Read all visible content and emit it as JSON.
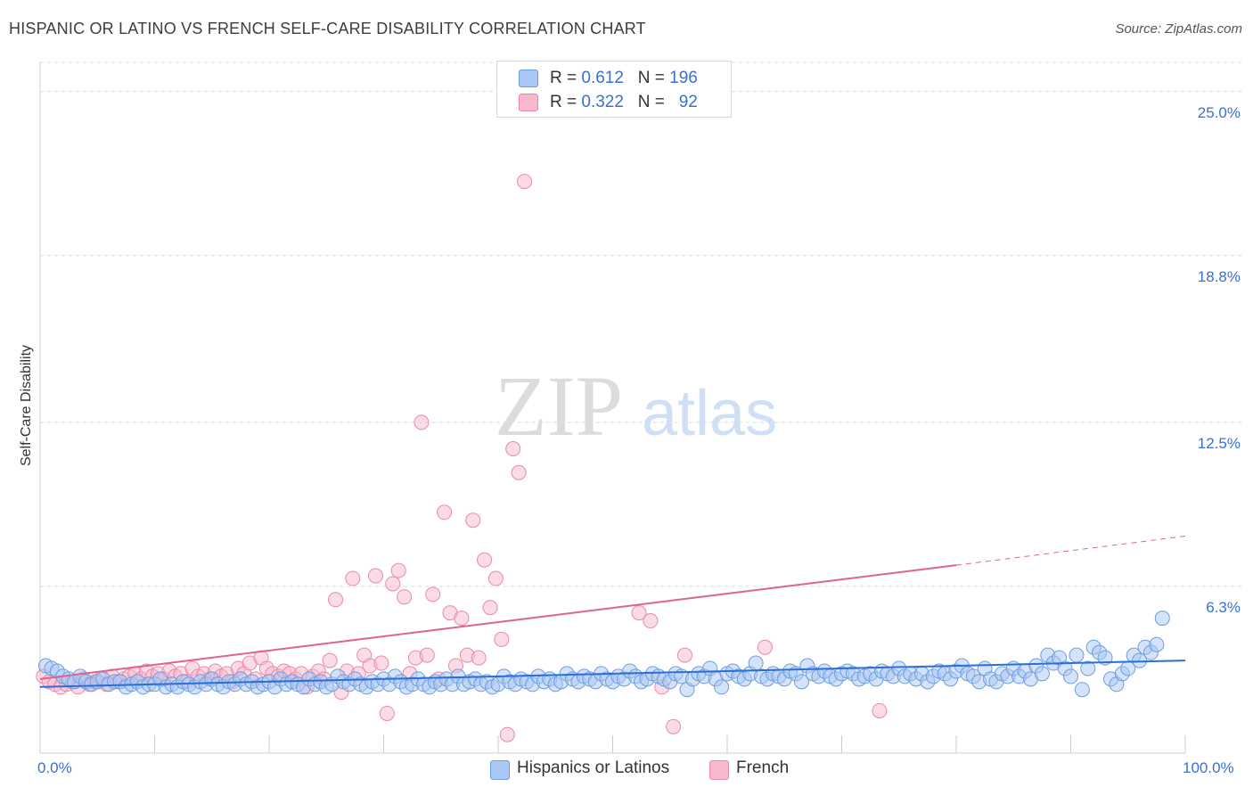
{
  "header": {
    "title": "HISPANIC OR LATINO VS FRENCH SELF-CARE DISABILITY CORRELATION CHART",
    "source": "Source: ZipAtlas.com"
  },
  "legend": {
    "rows": [
      {
        "r_label": "R = ",
        "r_value": "0.612",
        "n_label": "N = ",
        "n_value": "196",
        "color": "#a9c8f3"
      },
      {
        "r_label": "R = ",
        "r_value": "0.322",
        "n_label": "N = ",
        "n_value": "92",
        "color": "#f7b8cb"
      }
    ]
  },
  "watermark": {
    "left": "ZIP",
    "right": "atlas"
  },
  "colors": {
    "blue_fill": "#a9c8f3",
    "blue_stroke": "#6d9de0",
    "blue_line": "#2a6fd6",
    "pink_fill": "#f7b8cb",
    "pink_stroke": "#e98aa8",
    "pink_line": "#e0638f",
    "grid": "#dcdcdc",
    "axis_text": "#3b6fd0"
  },
  "chart_data": {
    "type": "scatter",
    "title": "HISPANIC OR LATINO VS FRENCH SELF-CARE DISABILITY CORRELATION CHART",
    "xlabel": "",
    "ylabel": "Self-Care Disability",
    "xlim": [
      0,
      100
    ],
    "ylim": [
      0,
      26.1
    ],
    "x_tick_labels": [
      "0.0%",
      "100.0%"
    ],
    "y_ticks": [
      6.3,
      12.5,
      18.8,
      25.0
    ],
    "y_tick_labels": [
      "6.3%",
      "12.5%",
      "18.8%",
      "25.0%"
    ],
    "grid": true,
    "legend_position": "top-center",
    "series": [
      {
        "name": "Hispanics or Latinos",
        "color": "#a9c8f3",
        "trend": {
          "x": [
            0,
            100
          ],
          "y": [
            2.5,
            3.5
          ]
        },
        "points": [
          [
            0.5,
            3.3
          ],
          [
            1,
            3.2
          ],
          [
            1.5,
            3.1
          ],
          [
            2,
            2.9
          ],
          [
            2.5,
            2.8
          ],
          [
            3,
            2.7
          ],
          [
            3.5,
            2.9
          ],
          [
            4,
            2.7
          ],
          [
            4.5,
            2.6
          ],
          [
            5,
            2.7
          ],
          [
            5.5,
            2.8
          ],
          [
            6,
            2.6
          ],
          [
            6.5,
            2.7
          ],
          [
            7,
            2.7
          ],
          [
            7.5,
            2.5
          ],
          [
            8,
            2.6
          ],
          [
            8.5,
            2.7
          ],
          [
            9,
            2.5
          ],
          [
            9.5,
            2.6
          ],
          [
            10,
            2.6
          ],
          [
            10.5,
            2.8
          ],
          [
            11,
            2.5
          ],
          [
            11.5,
            2.6
          ],
          [
            12,
            2.5
          ],
          [
            12.5,
            2.7
          ],
          [
            13,
            2.6
          ],
          [
            13.5,
            2.5
          ],
          [
            14,
            2.7
          ],
          [
            14.5,
            2.6
          ],
          [
            15,
            2.8
          ],
          [
            15.5,
            2.6
          ],
          [
            16,
            2.5
          ],
          [
            16.5,
            2.7
          ],
          [
            17,
            2.6
          ],
          [
            17.5,
            2.8
          ],
          [
            18,
            2.6
          ],
          [
            18.5,
            2.7
          ],
          [
            19,
            2.5
          ],
          [
            19.5,
            2.6
          ],
          [
            20,
            2.7
          ],
          [
            20.5,
            2.5
          ],
          [
            21,
            2.8
          ],
          [
            21.5,
            2.6
          ],
          [
            22,
            2.7
          ],
          [
            22.5,
            2.6
          ],
          [
            23,
            2.5
          ],
          [
            23.5,
            2.8
          ],
          [
            24,
            2.6
          ],
          [
            24.5,
            2.7
          ],
          [
            25,
            2.5
          ],
          [
            25.5,
            2.6
          ],
          [
            26,
            2.9
          ],
          [
            26.5,
            2.7
          ],
          [
            27,
            2.6
          ],
          [
            27.5,
            2.8
          ],
          [
            28,
            2.6
          ],
          [
            28.5,
            2.5
          ],
          [
            29,
            2.7
          ],
          [
            29.5,
            2.6
          ],
          [
            30,
            2.8
          ],
          [
            30.5,
            2.6
          ],
          [
            31,
            2.9
          ],
          [
            31.5,
            2.7
          ],
          [
            32,
            2.5
          ],
          [
            32.5,
            2.6
          ],
          [
            33,
            2.8
          ],
          [
            33.5,
            2.6
          ],
          [
            34,
            2.5
          ],
          [
            34.5,
            2.7
          ],
          [
            35,
            2.6
          ],
          [
            35.5,
            2.8
          ],
          [
            36,
            2.6
          ],
          [
            36.5,
            2.9
          ],
          [
            37,
            2.6
          ],
          [
            37.5,
            2.7
          ],
          [
            38,
            2.8
          ],
          [
            38.5,
            2.6
          ],
          [
            39,
            2.7
          ],
          [
            39.5,
            2.5
          ],
          [
            40,
            2.6
          ],
          [
            40.5,
            2.9
          ],
          [
            41,
            2.7
          ],
          [
            41.5,
            2.6
          ],
          [
            42,
            2.8
          ],
          [
            42.5,
            2.7
          ],
          [
            43,
            2.6
          ],
          [
            43.5,
            2.9
          ],
          [
            44,
            2.7
          ],
          [
            44.5,
            2.8
          ],
          [
            45,
            2.6
          ],
          [
            45.5,
            2.7
          ],
          [
            46,
            3.0
          ],
          [
            46.5,
            2.8
          ],
          [
            47,
            2.7
          ],
          [
            47.5,
            2.9
          ],
          [
            48,
            2.8
          ],
          [
            48.5,
            2.7
          ],
          [
            49,
            3.0
          ],
          [
            49.5,
            2.8
          ],
          [
            50,
            2.7
          ],
          [
            50.5,
            2.9
          ],
          [
            51,
            2.8
          ],
          [
            51.5,
            3.1
          ],
          [
            52,
            2.9
          ],
          [
            52.5,
            2.7
          ],
          [
            53,
            2.8
          ],
          [
            53.5,
            3.0
          ],
          [
            54,
            2.9
          ],
          [
            54.5,
            2.8
          ],
          [
            55,
            2.7
          ],
          [
            55.5,
            3.0
          ],
          [
            56,
            2.9
          ],
          [
            56.5,
            2.4
          ],
          [
            57,
            2.8
          ],
          [
            57.5,
            3.0
          ],
          [
            58,
            2.9
          ],
          [
            58.5,
            3.2
          ],
          [
            59,
            2.8
          ],
          [
            59.5,
            2.5
          ],
          [
            60,
            3.0
          ],
          [
            60.5,
            3.1
          ],
          [
            61,
            2.9
          ],
          [
            61.5,
            2.8
          ],
          [
            62,
            3.0
          ],
          [
            62.5,
            3.4
          ],
          [
            63,
            2.9
          ],
          [
            63.5,
            2.8
          ],
          [
            64,
            3.0
          ],
          [
            64.5,
            2.9
          ],
          [
            65,
            2.8
          ],
          [
            65.5,
            3.1
          ],
          [
            66,
            3.0
          ],
          [
            66.5,
            2.7
          ],
          [
            67,
            3.3
          ],
          [
            67.5,
            3.0
          ],
          [
            68,
            2.9
          ],
          [
            68.5,
            3.1
          ],
          [
            69,
            2.9
          ],
          [
            69.5,
            2.8
          ],
          [
            70,
            3.0
          ],
          [
            70.5,
            3.1
          ],
          [
            71,
            3.0
          ],
          [
            71.5,
            2.8
          ],
          [
            72,
            2.9
          ],
          [
            72.5,
            3.0
          ],
          [
            73,
            2.8
          ],
          [
            73.5,
            3.1
          ],
          [
            74,
            3.0
          ],
          [
            74.5,
            2.9
          ],
          [
            75,
            3.2
          ],
          [
            75.5,
            2.9
          ],
          [
            76,
            3.0
          ],
          [
            76.5,
            2.8
          ],
          [
            77,
            3.0
          ],
          [
            77.5,
            2.7
          ],
          [
            78,
            2.9
          ],
          [
            78.5,
            3.1
          ],
          [
            79,
            3.0
          ],
          [
            79.5,
            2.8
          ],
          [
            80,
            3.1
          ],
          [
            80.5,
            3.3
          ],
          [
            81,
            3.0
          ],
          [
            81.5,
            2.9
          ],
          [
            82,
            2.7
          ],
          [
            82.5,
            3.2
          ],
          [
            83,
            2.8
          ],
          [
            83.5,
            2.7
          ],
          [
            84,
            3.0
          ],
          [
            84.5,
            2.9
          ],
          [
            85,
            3.2
          ],
          [
            85.5,
            2.9
          ],
          [
            86,
            3.1
          ],
          [
            86.5,
            2.8
          ],
          [
            87,
            3.3
          ],
          [
            87.5,
            3.0
          ],
          [
            88,
            3.7
          ],
          [
            88.5,
            3.4
          ],
          [
            89,
            3.6
          ],
          [
            89.5,
            3.2
          ],
          [
            90,
            2.9
          ],
          [
            90.5,
            3.7
          ],
          [
            91,
            2.4
          ],
          [
            91.5,
            3.2
          ],
          [
            92,
            4.0
          ],
          [
            92.5,
            3.8
          ],
          [
            93,
            3.6
          ],
          [
            93.5,
            2.8
          ],
          [
            94,
            2.6
          ],
          [
            94.5,
            3.0
          ],
          [
            95,
            3.2
          ],
          [
            95.5,
            3.7
          ],
          [
            96,
            3.5
          ],
          [
            96.5,
            4.0
          ],
          [
            97,
            3.8
          ],
          [
            97.5,
            4.1
          ],
          [
            98,
            5.1
          ]
        ]
      },
      {
        "name": "French",
        "color": "#f7b8cb",
        "trend": {
          "x": [
            0,
            80
          ],
          "y": [
            2.8,
            7.1
          ],
          "dashed_to": [
            100,
            8.2
          ]
        },
        "points": [
          [
            0.3,
            2.9
          ],
          [
            0.8,
            2.7
          ],
          [
            1.3,
            2.6
          ],
          [
            1.8,
            2.5
          ],
          [
            2.3,
            2.6
          ],
          [
            2.8,
            2.7
          ],
          [
            3.3,
            2.5
          ],
          [
            3.8,
            2.8
          ],
          [
            4.3,
            2.6
          ],
          [
            4.8,
            2.7
          ],
          [
            5.3,
            2.8
          ],
          [
            5.8,
            2.6
          ],
          [
            6.3,
            2.9
          ],
          [
            6.8,
            2.7
          ],
          [
            7.3,
            2.8
          ],
          [
            7.8,
            2.9
          ],
          [
            8.3,
            3.0
          ],
          [
            8.8,
            2.8
          ],
          [
            9.3,
            3.1
          ],
          [
            9.8,
            2.9
          ],
          [
            10.3,
            3.0
          ],
          [
            10.8,
            2.8
          ],
          [
            11.3,
            3.1
          ],
          [
            11.8,
            2.9
          ],
          [
            12.3,
            3.0
          ],
          [
            12.8,
            2.7
          ],
          [
            13.3,
            3.2
          ],
          [
            13.8,
            2.9
          ],
          [
            14.3,
            3.0
          ],
          [
            14.8,
            2.8
          ],
          [
            15.3,
            3.1
          ],
          [
            15.8,
            2.9
          ],
          [
            16.3,
            3.0
          ],
          [
            16.8,
            2.7
          ],
          [
            17.3,
            3.2
          ],
          [
            17.8,
            3.0
          ],
          [
            18.3,
            3.4
          ],
          [
            18.8,
            2.8
          ],
          [
            19.3,
            3.6
          ],
          [
            19.8,
            3.2
          ],
          [
            20.3,
            3.0
          ],
          [
            20.8,
            2.9
          ],
          [
            21.3,
            3.1
          ],
          [
            21.8,
            3.0
          ],
          [
            22.3,
            2.8
          ],
          [
            22.8,
            3.0
          ],
          [
            23.3,
            2.5
          ],
          [
            23.8,
            2.9
          ],
          [
            24.3,
            3.1
          ],
          [
            24.8,
            2.8
          ],
          [
            25.3,
            3.5
          ],
          [
            25.8,
            5.8
          ],
          [
            26.3,
            2.3
          ],
          [
            26.8,
            3.1
          ],
          [
            27.3,
            6.6
          ],
          [
            27.8,
            3.0
          ],
          [
            28.3,
            3.7
          ],
          [
            28.8,
            3.3
          ],
          [
            29.3,
            6.7
          ],
          [
            29.8,
            3.4
          ],
          [
            30.3,
            1.5
          ],
          [
            30.8,
            6.4
          ],
          [
            31.3,
            6.9
          ],
          [
            31.8,
            5.9
          ],
          [
            32.3,
            3.0
          ],
          [
            32.8,
            3.6
          ],
          [
            33.3,
            12.5
          ],
          [
            33.8,
            3.7
          ],
          [
            34.3,
            6.0
          ],
          [
            34.8,
            2.8
          ],
          [
            35.3,
            9.1
          ],
          [
            35.8,
            5.3
          ],
          [
            36.3,
            3.3
          ],
          [
            36.8,
            5.1
          ],
          [
            37.3,
            3.7
          ],
          [
            37.8,
            8.8
          ],
          [
            38.3,
            3.6
          ],
          [
            38.8,
            7.3
          ],
          [
            39.3,
            5.5
          ],
          [
            39.8,
            6.6
          ],
          [
            40.3,
            4.3
          ],
          [
            40.8,
            0.7
          ],
          [
            41.3,
            11.5
          ],
          [
            41.8,
            10.6
          ],
          [
            42.3,
            21.6
          ],
          [
            52.3,
            5.3
          ],
          [
            53.3,
            5.0
          ],
          [
            54.3,
            2.5
          ],
          [
            55.3,
            1.0
          ],
          [
            56.3,
            3.7
          ],
          [
            63.3,
            4.0
          ],
          [
            73.3,
            1.6
          ]
        ]
      }
    ]
  },
  "bottom_legend": {
    "items": [
      {
        "label": "Hispanics or Latinos",
        "color": "#a9c8f3"
      },
      {
        "label": "French",
        "color": "#f7b8cb"
      }
    ]
  }
}
